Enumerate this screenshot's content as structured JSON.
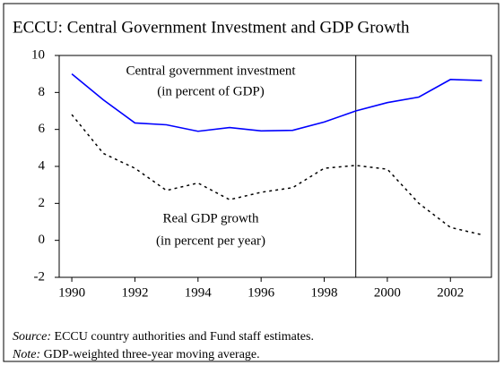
{
  "chart_data": {
    "type": "line",
    "title": "ECCU: Central Government Investment and GDP Growth",
    "x": [
      1990,
      1991,
      1992,
      1993,
      1994,
      1995,
      1996,
      1997,
      1998,
      1999,
      2000,
      2001,
      2002,
      2003
    ],
    "series": [
      {
        "name": "Central government investment",
        "name_sub": "(in percent of GDP)",
        "color": "#0000ff",
        "dash": "solid",
        "values": [
          9.0,
          7.6,
          6.35,
          6.25,
          5.9,
          6.1,
          5.92,
          5.95,
          6.4,
          7.0,
          7.45,
          7.75,
          8.7,
          8.65
        ]
      },
      {
        "name": "Real GDP growth",
        "name_sub": "(in percent per year)",
        "color": "#000000",
        "dash": "dotted",
        "values": [
          6.8,
          4.7,
          3.9,
          2.7,
          3.1,
          2.2,
          2.6,
          2.85,
          3.9,
          4.05,
          3.85,
          2.0,
          0.7,
          0.3
        ]
      }
    ],
    "xlim": [
      1989.6,
      2003.3
    ],
    "xticks": [
      1990,
      1992,
      1994,
      1996,
      1998,
      2000,
      2002
    ],
    "ylim": [
      -2,
      10
    ],
    "yticks": [
      -2,
      0,
      2,
      4,
      6,
      8,
      10
    ],
    "vline": 1999,
    "source_label": "Source:",
    "source": "ECCU country authorities and Fund staff estimates.",
    "note_label": "Note:",
    "note": "GDP-weighted three-year moving average."
  }
}
